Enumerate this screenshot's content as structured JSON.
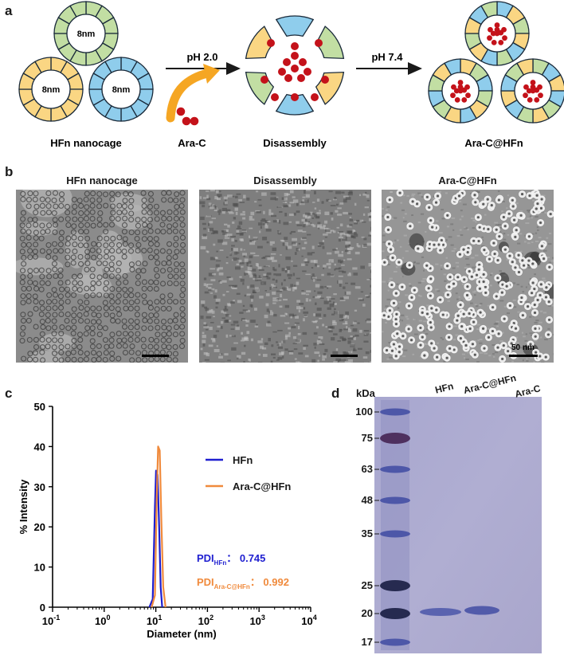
{
  "panels": {
    "a": "a",
    "b": "b",
    "c": "c",
    "d": "d"
  },
  "panel_a": {
    "cage_size": "8nm",
    "step1_label": "pH 2.0",
    "step2_label": "pH 7.4",
    "captions": {
      "nanocage": "HFn nanocage",
      "drug": "Ara-C",
      "disassembly": "Disassembly",
      "product": "Ara-C@HFn"
    },
    "colors": {
      "green": "#c2dea3",
      "yellow": "#fad683",
      "blue": "#8fcdec",
      "drug": "#c4121a",
      "arrow": "#f5a623"
    }
  },
  "panel_b": {
    "titles": [
      "HFn nanocage",
      "Disassembly",
      "Ara-C@HFn"
    ],
    "scale_label": "50 nm"
  },
  "chart_data": {
    "type": "line",
    "xlabel": "Diameter (nm)",
    "ylabel": "% Intensity",
    "x_scale": "log",
    "xlim": [
      0.1,
      10000
    ],
    "ylim": [
      0,
      50
    ],
    "x_tick_labels": [
      {
        "base": "10",
        "exp": "-1"
      },
      {
        "base": "10",
        "exp": "0"
      },
      {
        "base": "10",
        "exp": "1"
      },
      {
        "base": "10",
        "exp": "2"
      },
      {
        "base": "10",
        "exp": "3"
      },
      {
        "base": "10",
        "exp": "4"
      }
    ],
    "y_ticks": [
      0,
      10,
      20,
      30,
      40,
      50
    ],
    "series": [
      {
        "name": "HFn",
        "color": "#1f1fd0",
        "points": [
          [
            7.5,
            0
          ],
          [
            8.7,
            2
          ],
          [
            9.6,
            25
          ],
          [
            10.1,
            34
          ],
          [
            10.8,
            33
          ],
          [
            11.6,
            20
          ],
          [
            12.4,
            5
          ],
          [
            13.3,
            0
          ]
        ]
      },
      {
        "name": "Ara-C@HFn",
        "color": "#f08a3c",
        "points": [
          [
            8.3,
            0
          ],
          [
            9.6,
            3
          ],
          [
            10.4,
            27
          ],
          [
            11.1,
            40
          ],
          [
            11.9,
            39
          ],
          [
            12.8,
            22
          ],
          [
            13.9,
            5
          ],
          [
            15.4,
            0
          ]
        ]
      }
    ],
    "annotations": [
      {
        "prefix": "PDI",
        "sub": "HFn",
        "value": "0.745",
        "color": "#1f1fd0"
      },
      {
        "prefix": "PDI",
        "sub": "Ara-C@HFn",
        "value": "0.992",
        "color": "#f08a3c"
      }
    ]
  },
  "panel_d": {
    "kda_label": "kDa",
    "markers": [
      "100",
      "75",
      "63",
      "48",
      "35",
      "25",
      "20",
      "17"
    ],
    "lanes": [
      "HFn",
      "Ara-C@HFn",
      "Ara-C"
    ]
  }
}
